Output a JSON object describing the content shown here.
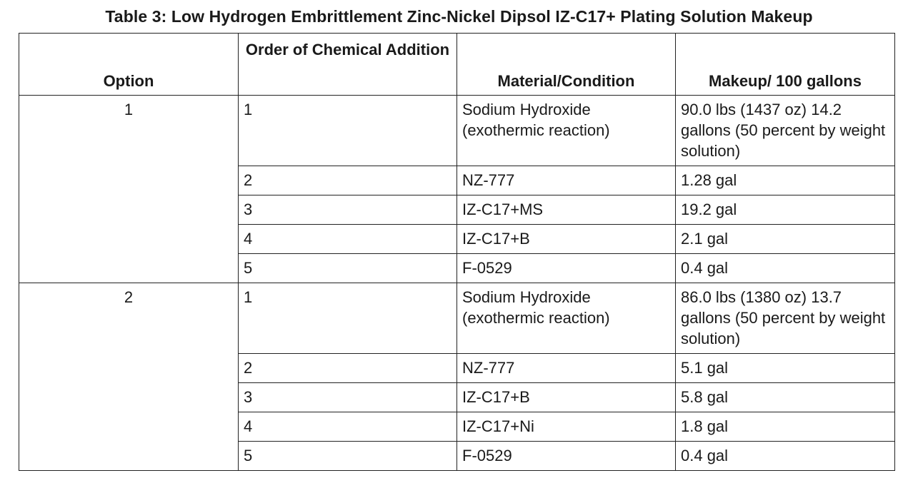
{
  "title": "Table 3:  Low Hydrogen Embrittlement Zinc-Nickel Dipsol IZ-C17+ Plating Solution Makeup",
  "headers": {
    "option": "Option",
    "order": "Order of Chemical Addition",
    "material": "Material/Condition",
    "makeup": "Makeup/ 100 gallons"
  },
  "options": [
    {
      "option": "1",
      "rows": [
        {
          "order": "1",
          "material": "Sodium Hydroxide (exothermic reaction)",
          "makeup": "90.0 lbs (1437 oz) 14.2 gallons (50 percent by weight solution)"
        },
        {
          "order": "2",
          "material": "NZ-777",
          "makeup": "1.28 gal"
        },
        {
          "order": "3",
          "material": "IZ-C17+MS",
          "makeup": "19.2 gal"
        },
        {
          "order": "4",
          "material": "IZ-C17+B",
          "makeup": "2.1 gal"
        },
        {
          "order": "5",
          "material": "F-0529",
          "makeup": "0.4 gal"
        }
      ]
    },
    {
      "option": "2",
      "rows": [
        {
          "order": "1",
          "material": "Sodium Hydroxide (exothermic reaction)",
          "makeup": "86.0 lbs (1380 oz) 13.7 gallons (50 percent by weight solution)"
        },
        {
          "order": "2",
          "material": "NZ-777",
          "makeup": "5.1 gal"
        },
        {
          "order": "3",
          "material": "IZ-C17+B",
          "makeup": "5.8 gal"
        },
        {
          "order": "4",
          "material": "IZ-C17+Ni",
          "makeup": "1.8 gal"
        },
        {
          "order": "5",
          "material": "F-0529",
          "makeup": "0.4 gal"
        }
      ]
    }
  ]
}
